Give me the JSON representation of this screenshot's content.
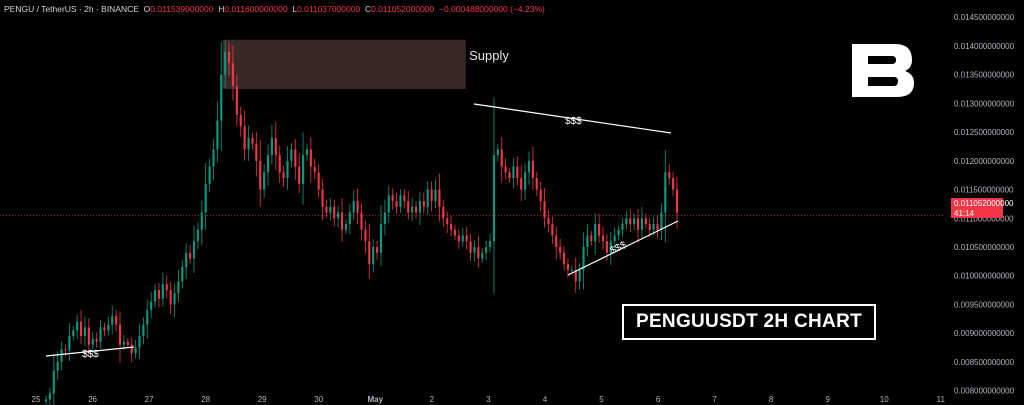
{
  "header": {
    "symbol": "PENGU / TetherUS · 2h · BINANCE",
    "open_label": "O",
    "open": "0.011539000000",
    "high_label": "H",
    "high": "0.011600000000",
    "low_label": "L",
    "low": "0.011037000000",
    "close_label": "C",
    "close": "0.011052000000",
    "change": "−0.000488000000 (−4.23%)"
  },
  "price_tag": {
    "price": "0.011052000000",
    "countdown": "41:14"
  },
  "annotations": {
    "supply": "Supply",
    "liq_top": "$$$",
    "liq_bottom_right": "$$$",
    "liq_bottom_left": "$$$",
    "title": "PENGUUSDT 2H CHART"
  },
  "colors": {
    "up": "#089981",
    "down": "#f23645",
    "supply_zone": "#3a2826",
    "background": "#000000"
  },
  "icons": {
    "logo": "brand-b-logo"
  },
  "chart_data": {
    "type": "candlestick",
    "x_ticks": [
      "25",
      "26",
      "27",
      "28",
      "29",
      "30",
      "May",
      "2",
      "3",
      "4",
      "5",
      "6",
      "7",
      "8",
      "9",
      "10",
      "11"
    ],
    "y_ticks": [
      "0.014500000000",
      "0.014000000000",
      "0.013500000000",
      "0.013000000000",
      "0.012500000000",
      "0.012000000000",
      "0.011500000000",
      "0.011000000000",
      "0.010500000000",
      "0.010000000000",
      "0.009500000000",
      "0.009000000000",
      "0.008500000000",
      "0.008000000000"
    ],
    "ylim": [
      0.00775,
      0.0148
    ],
    "x_range_days": [
      25,
      42
    ],
    "current_price": 0.011052,
    "supply_zone": {
      "low": 0.01325,
      "high": 0.01411,
      "day_start": 28.3,
      "day_end": 32.6
    },
    "closes": [
      0.00785,
      0.00795,
      0.00835,
      0.0085,
      0.00872,
      0.0087,
      0.00895,
      0.00905,
      0.0092,
      0.00895,
      0.0091,
      0.0088,
      0.0089,
      0.00885,
      0.0091,
      0.00905,
      0.00915,
      0.0093,
      0.00915,
      0.0088,
      0.00885,
      0.0088,
      0.00865,
      0.00875,
      0.00895,
      0.00915,
      0.0094,
      0.00955,
      0.00975,
      0.0096,
      0.00985,
      0.00975,
      0.0095,
      0.0097,
      0.0099,
      0.01015,
      0.0104,
      0.0103,
      0.0106,
      0.0108,
      0.0111,
      0.0116,
      0.0119,
      0.0122,
      0.0127,
      0.0135,
      0.0139,
      0.0137,
      0.0133,
      0.0128,
      0.0126,
      0.0122,
      0.0124,
      0.0123,
      0.012,
      0.0115,
      0.0118,
      0.0121,
      0.0124,
      0.0121,
      0.0118,
      0.0117,
      0.012,
      0.0122,
      0.0119,
      0.0116,
      0.0121,
      0.0122,
      0.0119,
      0.0118,
      0.0115,
      0.0112,
      0.0111,
      0.0112,
      0.011,
      0.0111,
      0.0108,
      0.0109,
      0.0111,
      0.0113,
      0.0111,
      0.0108,
      0.0106,
      0.0102,
      0.0105,
      0.0104,
      0.0109,
      0.0111,
      0.0114,
      0.0113,
      0.0112,
      0.0114,
      0.0113,
      0.0111,
      0.0112,
      0.0111,
      0.0113,
      0.0112,
      0.0115,
      0.0113,
      0.0115,
      0.0112,
      0.011,
      0.0109,
      0.0108,
      0.0107,
      0.0106,
      0.0107,
      0.0106,
      0.0104,
      0.0105,
      0.0103,
      0.0104,
      0.0105,
      0.0106,
      0.0121,
      0.0122,
      0.0119,
      0.0118,
      0.0117,
      0.0119,
      0.0117,
      0.0115,
      0.0118,
      0.012,
      0.0117,
      0.0115,
      0.0113,
      0.011,
      0.0109,
      0.0107,
      0.0105,
      0.0104,
      0.0102,
      0.0101,
      0.0101,
      0.0099,
      0.0101,
      0.0105,
      0.0107,
      0.0106,
      0.0109,
      0.0107,
      0.0106,
      0.0104,
      0.0106,
      0.0107,
      0.0108,
      0.0109,
      0.011,
      0.0109,
      0.011,
      0.0108,
      0.011,
      0.0109,
      0.0108,
      0.0109,
      0.0108,
      0.0111,
      0.0118,
      0.0117,
      0.0115,
      0.0111
    ]
  }
}
